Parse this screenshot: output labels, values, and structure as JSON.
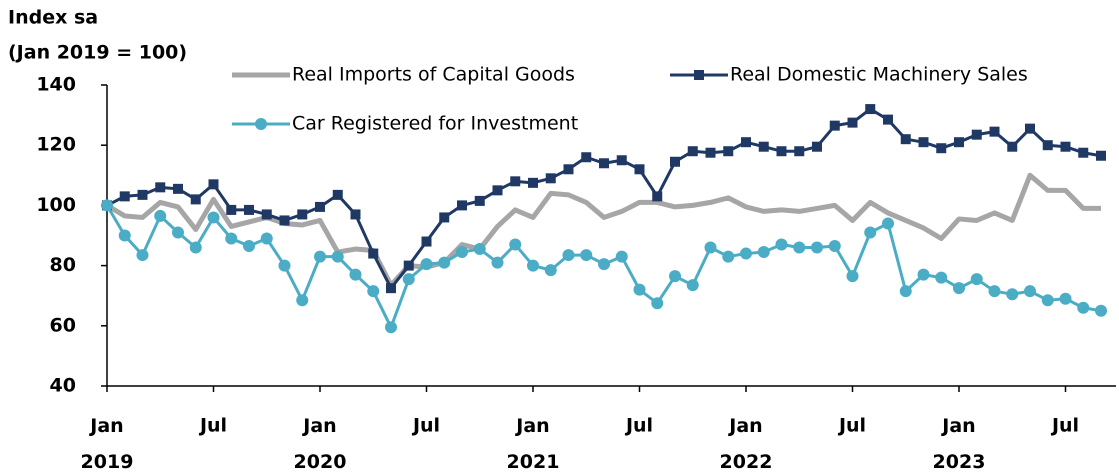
{
  "chart_data": {
    "type": "line",
    "y_label_lines": [
      "Index sa",
      "(Jan 2019 = 100)"
    ],
    "categories": [
      "Jan 2019",
      null,
      null,
      null,
      null,
      null,
      "Jul",
      null,
      null,
      null,
      null,
      null,
      "Jan 2020",
      null,
      null,
      null,
      null,
      null,
      "Jul",
      null,
      null,
      null,
      null,
      null,
      "Jan 2021",
      null,
      null,
      null,
      null,
      null,
      "Jul",
      null,
      null,
      null,
      null,
      null,
      "Jan 2022",
      null,
      null,
      null,
      null,
      null,
      "Jul",
      null,
      null,
      null,
      null,
      null,
      "Jan 2023",
      null,
      null,
      null,
      null,
      null,
      "Jul",
      null,
      null
    ],
    "series": [
      {
        "name": "Real Imports of Capital Goods",
        "color": "#a6a6a6",
        "marker": "none",
        "values": [
          100,
          96.5,
          96,
          101,
          99.5,
          92,
          102,
          93,
          94.5,
          96,
          94,
          93.5,
          95,
          84.5,
          85.5,
          85,
          73.5,
          80,
          79.5,
          81,
          87,
          85.5,
          93,
          98.5,
          96,
          104,
          103.5,
          101,
          96,
          98,
          101,
          101,
          99.5,
          100,
          101,
          102.5,
          99.5,
          98,
          98.5,
          98,
          99,
          100,
          95,
          101,
          97.5,
          95,
          92.5,
          89,
          95.5,
          95,
          97.5,
          95,
          110,
          105,
          105,
          99,
          99
        ]
      },
      {
        "name": "Real Domestic Machinery Sales",
        "color": "#1f3864",
        "marker": "square",
        "values": [
          100,
          103,
          103.5,
          106,
          105.5,
          102,
          107,
          98.5,
          98.5,
          97,
          95,
          97,
          99.5,
          103.5,
          97,
          84,
          72.5,
          80,
          88,
          96,
          100,
          101.5,
          105,
          108,
          107.5,
          109,
          112,
          116,
          114,
          115,
          112,
          103,
          114.5,
          118,
          117.5,
          118,
          121,
          119.5,
          118,
          118,
          119.5,
          126.5,
          127.5,
          132,
          128.5,
          122,
          121,
          119,
          121,
          123.5,
          124.5,
          119.5,
          125.5,
          120,
          119.5,
          117.5,
          116.5
        ]
      },
      {
        "name": "Car Registered for Investment",
        "color": "#4bacc6",
        "marker": "circle",
        "values": [
          100,
          90,
          83.5,
          96.5,
          91,
          86,
          96,
          89,
          86.5,
          89,
          80,
          68.5,
          83,
          83,
          77,
          71.5,
          59.5,
          75.5,
          80.5,
          81,
          84.5,
          85.5,
          81,
          87,
          80,
          78.5,
          83.5,
          83.5,
          80.5,
          83,
          72,
          67.5,
          76.5,
          73.5,
          86,
          83,
          84,
          84.5,
          87,
          86,
          86,
          86.5,
          76.5,
          91,
          94,
          71.5,
          77,
          76,
          72.5,
          75.5,
          71.5,
          70.5,
          71.5,
          68.5,
          69,
          66,
          65
        ]
      }
    ],
    "ylim": [
      40,
      140
    ],
    "yticks": [
      40,
      60,
      80,
      100,
      120,
      140
    ],
    "grid": false
  }
}
